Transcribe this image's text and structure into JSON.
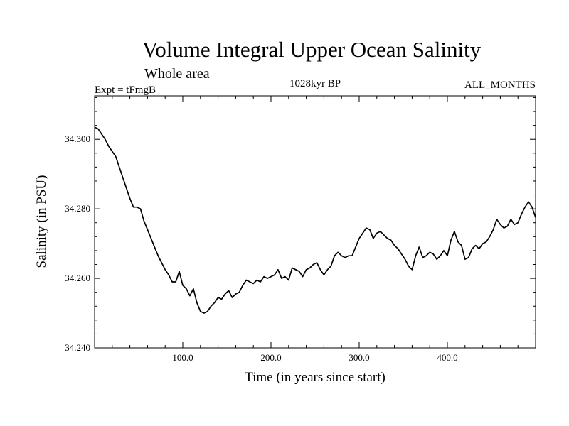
{
  "chart_data": {
    "type": "line",
    "title": "Volume Integral Upper Ocean Salinity",
    "subtitle": "Whole area",
    "experiment": "Expt = tFmgB",
    "period": "1028kyr BP",
    "months": "ALL_MONTHS",
    "xlabel": "Time (in years since start)",
    "ylabel": "Salinity (in PSU)",
    "xlim": [
      0,
      500
    ],
    "ylim": [
      34.24,
      34.3125
    ],
    "x_ticks": [
      100,
      200,
      300,
      400
    ],
    "x_tick_labels": [
      "100.0",
      "200.0",
      "300.0",
      "400.0"
    ],
    "y_ticks": [
      34.24,
      34.26,
      34.28,
      34.3
    ],
    "y_tick_labels": [
      "34.240",
      "34.260",
      "34.280",
      "34.300"
    ],
    "grid": false,
    "line_color": "#000000",
    "series": [
      {
        "name": "Salinity",
        "x": [
          0,
          4,
          8,
          12,
          16,
          20,
          24,
          28,
          32,
          36,
          40,
          44,
          48,
          52,
          56,
          60,
          64,
          68,
          72,
          76,
          80,
          84,
          88,
          92,
          96,
          100,
          104,
          108,
          112,
          116,
          120,
          124,
          128,
          132,
          136,
          140,
          144,
          148,
          152,
          156,
          160,
          164,
          168,
          172,
          176,
          180,
          184,
          188,
          192,
          196,
          200,
          204,
          208,
          212,
          216,
          220,
          224,
          228,
          232,
          236,
          240,
          244,
          248,
          252,
          256,
          260,
          264,
          268,
          272,
          276,
          280,
          284,
          288,
          292,
          296,
          300,
          304,
          308,
          312,
          316,
          320,
          324,
          328,
          332,
          336,
          340,
          344,
          348,
          352,
          356,
          360,
          364,
          368,
          372,
          376,
          380,
          384,
          388,
          392,
          396,
          400,
          404,
          408,
          412,
          416,
          420,
          424,
          428,
          432,
          436,
          440,
          444,
          448,
          452,
          456,
          460,
          464,
          468,
          472,
          476,
          480,
          484,
          488,
          492,
          496,
          500
        ],
        "values": [
          34.3035,
          34.303,
          34.3015,
          34.3,
          34.298,
          34.2965,
          34.295,
          34.292,
          34.289,
          34.286,
          34.283,
          34.2805,
          34.2805,
          34.28,
          34.2765,
          34.274,
          34.2715,
          34.269,
          34.2665,
          34.2645,
          34.2625,
          34.261,
          34.259,
          34.259,
          34.262,
          34.258,
          34.257,
          34.255,
          34.257,
          34.253,
          34.2505,
          34.25,
          34.2505,
          34.252,
          34.253,
          34.2545,
          34.254,
          34.2555,
          34.2565,
          34.2545,
          34.2555,
          34.256,
          34.258,
          34.2595,
          34.259,
          34.2585,
          34.2595,
          34.259,
          34.2605,
          34.26,
          34.2605,
          34.261,
          34.2625,
          34.26,
          34.2605,
          34.2595,
          34.263,
          34.2625,
          34.262,
          34.2605,
          34.2625,
          34.263,
          34.264,
          34.2645,
          34.2625,
          34.261,
          34.2625,
          34.2635,
          34.2665,
          34.2675,
          34.2665,
          34.266,
          34.2665,
          34.2665,
          34.269,
          34.2715,
          34.273,
          34.2745,
          34.274,
          34.2715,
          34.273,
          34.2735,
          34.2725,
          34.2715,
          34.271,
          34.2695,
          34.2685,
          34.267,
          34.2655,
          34.2635,
          34.2625,
          34.2665,
          34.269,
          34.266,
          34.2665,
          34.2675,
          34.267,
          34.2655,
          34.2665,
          34.268,
          34.2665,
          34.271,
          34.2735,
          34.2705,
          34.2695,
          34.2655,
          34.266,
          34.2685,
          34.2695,
          34.2685,
          34.27,
          34.2705,
          34.272,
          34.274,
          34.277,
          34.2755,
          34.2745,
          34.275,
          34.277,
          34.2755,
          34.276,
          34.2785,
          34.2805,
          34.282,
          34.2805,
          34.2775
        ]
      }
    ]
  }
}
